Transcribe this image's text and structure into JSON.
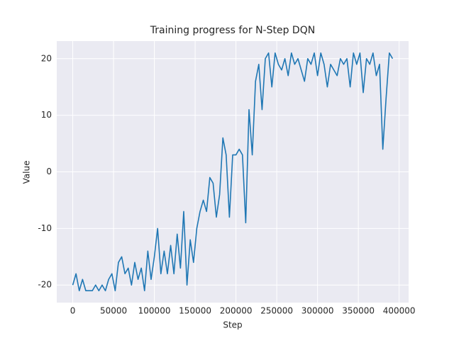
{
  "chart_data": {
    "type": "line",
    "title": "Training progress for N-Step DQN",
    "x_label": "Step",
    "y_label": "Value",
    "x": [
      0,
      4000,
      8000,
      12000,
      16000,
      20000,
      24000,
      28000,
      32000,
      36000,
      40000,
      44000,
      48000,
      52000,
      56000,
      60000,
      64000,
      68000,
      72000,
      76000,
      80000,
      84000,
      88000,
      92000,
      96000,
      100000,
      104000,
      108000,
      112000,
      116000,
      120000,
      124000,
      128000,
      132000,
      136000,
      140000,
      144000,
      148000,
      152000,
      156000,
      160000,
      164000,
      168000,
      172000,
      176000,
      180000,
      184000,
      188000,
      192000,
      196000,
      200000,
      204000,
      208000,
      212000,
      216000,
      220000,
      224000,
      228000,
      232000,
      236000,
      240000,
      244000,
      248000,
      252000,
      256000,
      260000,
      264000,
      268000,
      272000,
      276000,
      280000,
      284000,
      288000,
      292000,
      296000,
      300000,
      304000,
      308000,
      312000,
      316000,
      320000,
      324000,
      328000,
      332000,
      336000,
      340000,
      344000,
      348000,
      352000,
      356000,
      360000,
      364000,
      368000,
      372000,
      376000,
      380000,
      384000,
      388000,
      392000
    ],
    "values": [
      -20,
      -18,
      -21,
      -19,
      -21,
      -21,
      -21,
      -20,
      -21,
      -20,
      -21,
      -19,
      -18,
      -21,
      -16,
      -15,
      -18,
      -17,
      -20,
      -16,
      -19,
      -17,
      -21,
      -14,
      -19,
      -15,
      -10,
      -18,
      -14,
      -18,
      -13,
      -18,
      -11,
      -17,
      -7,
      -20,
      -12,
      -16,
      -10,
      -7,
      -5,
      -7,
      -1,
      -2,
      -8,
      -4,
      6,
      3,
      -8,
      3,
      3,
      4,
      3,
      -9,
      11,
      3,
      16,
      19,
      11,
      20,
      21,
      15,
      21,
      19,
      18,
      20,
      17,
      21,
      19,
      20,
      18,
      16,
      20,
      19,
      21,
      17,
      21,
      19,
      15,
      19,
      18,
      17,
      20,
      19,
      20,
      15,
      21,
      19,
      21,
      14,
      20,
      19,
      21,
      17,
      19,
      4,
      13,
      21,
      20
    ],
    "color": "#1f77b4",
    "xlim": [
      -19600,
      411600
    ],
    "ylim": [
      -23.1,
      23.1
    ],
    "xticks": [
      0,
      50000,
      100000,
      150000,
      200000,
      250000,
      300000,
      350000,
      400000
    ],
    "yticks": [
      -20,
      -10,
      0,
      10,
      20
    ],
    "grid": true
  }
}
